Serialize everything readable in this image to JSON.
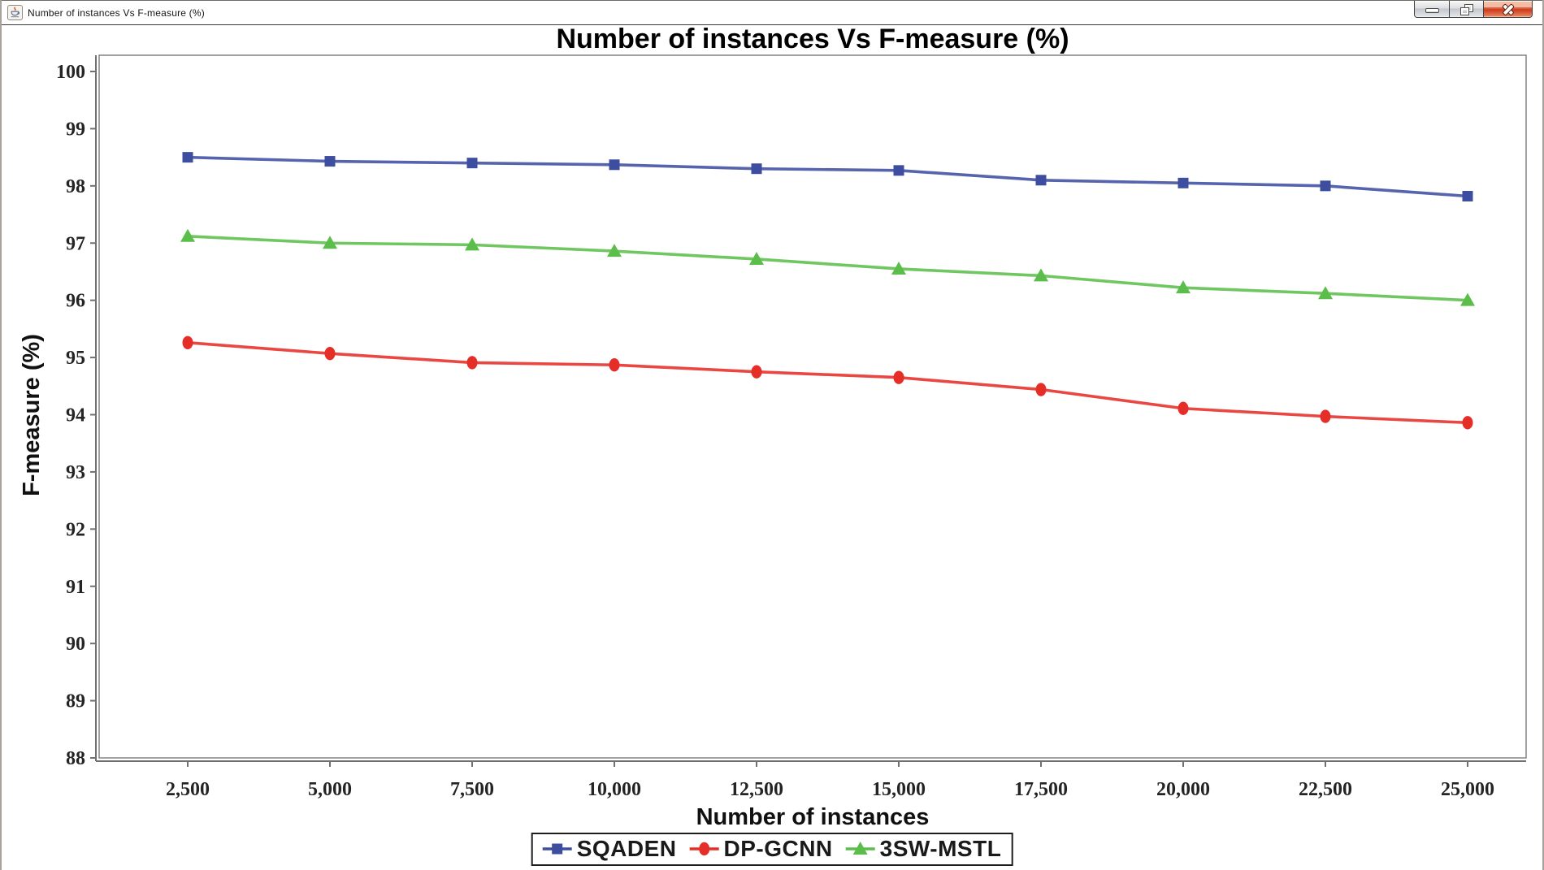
{
  "window": {
    "title": "Number of instances Vs F-measure (%)",
    "icon": "java-coffee-cup-icon",
    "controls": {
      "minimize": "minimize",
      "maximize": "restore",
      "close": "close"
    },
    "close_button_color": "#cf3a1e"
  },
  "chart_data": {
    "type": "line",
    "title": "Number of instances Vs F-measure (%)",
    "xlabel": "Number of instances",
    "ylabel": "F-measure (%)",
    "x": [
      2500,
      5000,
      7500,
      10000,
      12500,
      15000,
      17500,
      20000,
      22500,
      25000
    ],
    "x_tick_labels": [
      "2,500",
      "5,000",
      "7,500",
      "10,000",
      "12,500",
      "15,000",
      "17,500",
      "20,000",
      "22,500",
      "25,000"
    ],
    "ylim": [
      88,
      100
    ],
    "y_ticks": [
      "88",
      "89",
      "90",
      "91",
      "92",
      "93",
      "94",
      "95",
      "96",
      "97",
      "98",
      "99",
      "100"
    ],
    "grid": false,
    "legend_position": "bottom",
    "axis_color": "#8a8a8a",
    "series": [
      {
        "name": "SQADEN",
        "color": "#3d4ea0",
        "marker": "square",
        "values": [
          98.5,
          98.43,
          98.4,
          98.37,
          98.3,
          98.27,
          98.1,
          98.05,
          98.0,
          97.82
        ]
      },
      {
        "name": "DP-GCNN",
        "color": "#e62e28",
        "marker": "circle",
        "values": [
          95.26,
          95.07,
          94.91,
          94.87,
          94.75,
          94.65,
          94.44,
          94.11,
          93.97,
          93.86
        ]
      },
      {
        "name": "3SW-MSTL",
        "color": "#5cbe4a",
        "marker": "triangle",
        "values": [
          97.12,
          97.0,
          96.97,
          96.86,
          96.72,
          96.55,
          96.43,
          96.22,
          96.12,
          96.0
        ]
      }
    ]
  }
}
